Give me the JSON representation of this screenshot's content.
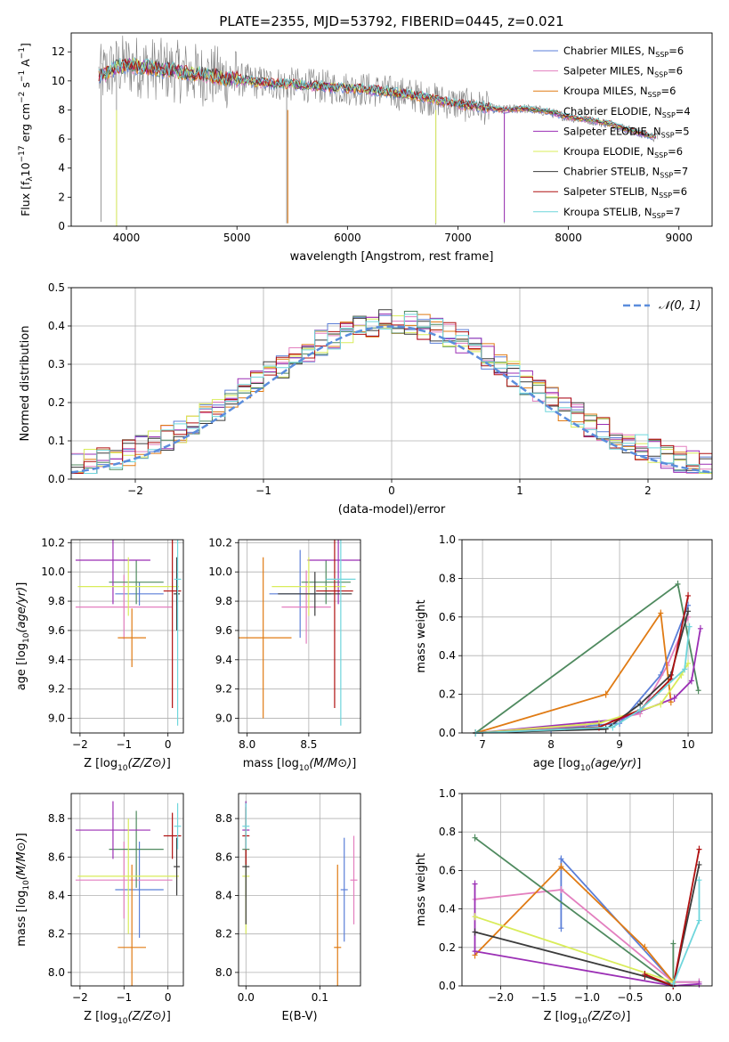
{
  "title": "PLATE=2355, MJD=53792, FIBERID=0445, z=0.021",
  "colors": {
    "Chabrier MILES": "#5b7fd8",
    "Salpeter MILES": "#e37fbf",
    "Kroupa MILES": "#e07b14",
    "Chabrier ELODIE": "#4f8a5f",
    "Salpeter ELODIE": "#9b2fb5",
    "Kroupa ELODIE": "#d9ec5a",
    "Chabrier STELIB": "#3b3b3b",
    "Salpeter STELIB": "#b01010",
    "Kroupa STELIB": "#6fd6dc",
    "data": "#7f7f7f",
    "normal": "#5b8ddc"
  },
  "chart_data": [
    {
      "type": "line",
      "panel": "spectrum",
      "xlabel": "wavelength [Angstrom, rest frame]",
      "ylabel": "Flux [fλ10⁻¹⁷ erg cm⁻² s⁻¹ A⁻¹]",
      "xlim": [
        3500,
        9300
      ],
      "ylim": [
        0,
        13.3
      ],
      "xticks": [
        "4000",
        "5000",
        "6000",
        "7000",
        "8000",
        "9000"
      ],
      "yticks": [
        "0",
        "2",
        "4",
        "6",
        "8",
        "10",
        "12"
      ],
      "legend_position": "top-right",
      "series": [
        {
          "label": "Chabrier MILES, N",
          "sub": "SSP",
          "suffix": "=6",
          "key": "Chabrier MILES"
        },
        {
          "label": "Salpeter MILES, N",
          "sub": "SSP",
          "suffix": "=6",
          "key": "Salpeter MILES"
        },
        {
          "label": "Kroupa MILES, N",
          "sub": "SSP",
          "suffix": "=6",
          "key": "Kroupa MILES"
        },
        {
          "label": "Chabrier ELODIE, N",
          "sub": "SSP",
          "suffix": "=4",
          "key": "Chabrier ELODIE"
        },
        {
          "label": "Salpeter ELODIE, N",
          "sub": "SSP",
          "suffix": "=5",
          "key": "Salpeter ELODIE"
        },
        {
          "label": "Kroupa ELODIE, N",
          "sub": "SSP",
          "suffix": "=6",
          "key": "Kroupa ELODIE"
        },
        {
          "label": "Chabrier STELIB, N",
          "sub": "SSP",
          "suffix": "=7",
          "key": "Chabrier STELIB"
        },
        {
          "label": "Salpeter STELIB, N",
          "sub": "SSP",
          "suffix": "=6",
          "key": "Salpeter STELIB"
        },
        {
          "label": "Kroupa STELIB, N",
          "sub": "SSP",
          "suffix": "=7",
          "key": "Kroupa STELIB"
        }
      ],
      "continuum": {
        "x": [
          3750,
          3900,
          4000,
          4100,
          4200,
          4400,
          4600,
          4800,
          5000,
          5200,
          5400,
          5600,
          5800,
          6000,
          6200,
          6400,
          6600,
          6800,
          7000,
          7200,
          7400,
          7600,
          7800,
          8000,
          8200,
          8400,
          8600,
          8800
        ],
        "y": [
          10.3,
          10.9,
          11.1,
          11.0,
          10.9,
          10.7,
          10.5,
          10.3,
          10.1,
          9.9,
          9.8,
          9.7,
          9.6,
          9.5,
          9.4,
          9.2,
          9.0,
          8.7,
          8.4,
          8.2,
          8.0,
          8.1,
          7.9,
          7.5,
          7.3,
          7.0,
          6.5,
          6.1
        ]
      }
    },
    {
      "type": "histogram",
      "panel": "residuals",
      "xlabel": "(data-model)/error",
      "ylabel": "Normed distribution",
      "xlim": [
        -2.5,
        2.5
      ],
      "ylim": [
        0,
        0.5
      ],
      "xticks": [
        "−2",
        "−1",
        "0",
        "1",
        "2"
      ],
      "yticks": [
        "0.0",
        "0.1",
        "0.2",
        "0.3",
        "0.4",
        "0.5"
      ],
      "legend": "N(0, 1)",
      "bin_width": 0.1
    },
    {
      "type": "scatter",
      "panel": "age-vs-Z",
      "xlabel": "Z [log10(Z/Z⊙)]",
      "ylabel": "age  [log10(age/yr)]",
      "xlim": [
        -2.2,
        0.35
      ],
      "ylim": [
        8.9,
        10.22
      ],
      "xticks": [
        "−2",
        "−1",
        "0"
      ],
      "yticks": [
        "9.0",
        "9.2",
        "9.4",
        "9.6",
        "9.8",
        "10.0",
        "10.2"
      ],
      "points": [
        {
          "key": "Chabrier MILES",
          "x": -0.65,
          "xerr": 0.55,
          "y": 9.85,
          "yerr": 0.08
        },
        {
          "key": "Salpeter MILES",
          "x": -1.0,
          "xerr": 1.1,
          "y": 9.76,
          "yerr": 0.22
        },
        {
          "key": "Kroupa MILES",
          "x": -0.82,
          "xerr": 0.32,
          "y": 9.55,
          "yerr": 0.2
        },
        {
          "key": "Chabrier ELODIE",
          "x": -0.72,
          "xerr": 0.62,
          "y": 9.93,
          "yerr": 0.15
        },
        {
          "key": "Salpeter ELODIE",
          "x": -1.25,
          "xerr": 0.85,
          "y": 10.08,
          "yerr": 0.3
        },
        {
          "key": "Kroupa ELODIE",
          "x": -0.9,
          "xerr": 1.15,
          "y": 9.9,
          "yerr": 0.2
        },
        {
          "key": "Chabrier STELIB",
          "x": 0.2,
          "xerr": 0.07,
          "y": 9.85,
          "yerr": 0.25
        },
        {
          "key": "Salpeter STELIB",
          "x": 0.1,
          "xerr": 0.2,
          "y": 9.87,
          "yerr": 0.8
        },
        {
          "key": "Kroupa STELIB",
          "x": 0.22,
          "xerr": 0.08,
          "y": 9.95,
          "yerr": 1.0
        }
      ]
    },
    {
      "type": "scatter",
      "panel": "age-vs-mass",
      "xlabel": "mass [log10(M/M⊙)]",
      "ylabel": "",
      "xlim": [
        7.93,
        8.92
      ],
      "ylim": [
        8.9,
        10.22
      ],
      "xticks": [
        "8.0",
        "8.5"
      ],
      "yticks": [
        "9.0",
        "9.2",
        "9.4",
        "9.6",
        "9.8",
        "10.0",
        "10.2"
      ],
      "points": [
        {
          "key": "Chabrier MILES",
          "x": 8.43,
          "xerr": 0.25,
          "y": 9.85,
          "yerr": 0.3
        },
        {
          "key": "Salpeter MILES",
          "x": 8.48,
          "xerr": 0.2,
          "y": 9.76,
          "yerr": 0.25
        },
        {
          "key": "Kroupa MILES",
          "x": 8.13,
          "xerr": 0.23,
          "y": 9.55,
          "yerr": 0.55
        },
        {
          "key": "Chabrier ELODIE",
          "x": 8.64,
          "xerr": 0.2,
          "y": 9.93,
          "yerr": 0.15
        },
        {
          "key": "Salpeter ELODIE",
          "x": 8.74,
          "xerr": 0.25,
          "y": 10.08,
          "yerr": 0.3
        },
        {
          "key": "Kroupa ELODIE",
          "x": 8.5,
          "xerr": 0.3,
          "y": 9.9,
          "yerr": 0.2
        },
        {
          "key": "Chabrier STELIB",
          "x": 8.55,
          "xerr": 0.3,
          "y": 9.85,
          "yerr": 0.15
        },
        {
          "key": "Salpeter STELIB",
          "x": 8.71,
          "xerr": 0.15,
          "y": 9.87,
          "yerr": 0.8
        },
        {
          "key": "Kroupa STELIB",
          "x": 8.76,
          "xerr": 0.12,
          "y": 9.95,
          "yerr": 1.0
        }
      ]
    },
    {
      "type": "line",
      "panel": "mass-weight-vs-age",
      "xlabel": "age  [log10(age/yr)]",
      "ylabel": "mass weight",
      "xlim": [
        6.7,
        10.35
      ],
      "ylim": [
        0,
        1.0
      ],
      "xticks": [
        "7",
        "8",
        "9",
        "10"
      ],
      "yticks": [
        "0.0",
        "0.2",
        "0.4",
        "0.6",
        "0.8",
        "1.0"
      ],
      "series": [
        {
          "key": "Chabrier MILES",
          "x": [
            6.9,
            8.0,
            9.0,
            9.6,
            10.0
          ],
          "y": [
            0.0,
            0.02,
            0.05,
            0.3,
            0.66
          ]
        },
        {
          "key": "Salpeter MILES",
          "x": [
            6.9,
            8.5,
            9.3,
            9.7,
            10.0
          ],
          "y": [
            0.0,
            0.04,
            0.1,
            0.35,
            0.6
          ]
        },
        {
          "key": "Kroupa MILES",
          "x": [
            6.9,
            8.8,
            9.6,
            9.75
          ],
          "y": [
            0.0,
            0.2,
            0.62,
            0.16
          ]
        },
        {
          "key": "Chabrier ELODIE",
          "x": [
            6.9,
            9.85,
            10.15
          ],
          "y": [
            0.0,
            0.77,
            0.22
          ]
        },
        {
          "key": "Salpeter ELODIE",
          "x": [
            6.9,
            9.0,
            9.8,
            10.05,
            10.18
          ],
          "y": [
            0.0,
            0.07,
            0.18,
            0.27,
            0.54
          ]
        },
        {
          "key": "Kroupa ELODIE",
          "x": [
            6.9,
            8.7,
            9.6,
            9.9,
            10.0
          ],
          "y": [
            0.0,
            0.05,
            0.15,
            0.3,
            0.36
          ]
        },
        {
          "key": "Chabrier STELIB",
          "x": [
            6.9,
            8.8,
            9.3,
            9.75,
            10.0
          ],
          "y": [
            0.0,
            0.02,
            0.15,
            0.3,
            0.63
          ]
        },
        {
          "key": "Salpeter STELIB",
          "x": [
            6.9,
            8.7,
            9.3,
            9.75,
            10.0
          ],
          "y": [
            0.0,
            0.03,
            0.12,
            0.28,
            0.71
          ]
        },
        {
          "key": "Kroupa STELIB",
          "x": [
            6.9,
            8.9,
            9.3,
            9.95,
            10.02
          ],
          "y": [
            0.0,
            0.03,
            0.12,
            0.33,
            0.55
          ]
        }
      ]
    },
    {
      "type": "scatter",
      "panel": "mass-vs-Z",
      "xlabel": "Z [log10(Z/Z⊙)]",
      "ylabel": "mass [log10(M/M⊙)]",
      "xlim": [
        -2.2,
        0.35
      ],
      "ylim": [
        7.93,
        8.93
      ],
      "xticks": [
        "−2",
        "−1",
        "0"
      ],
      "yticks": [
        "8.0",
        "8.2",
        "8.4",
        "8.6",
        "8.8"
      ],
      "points": [
        {
          "key": "Chabrier MILES",
          "x": -0.65,
          "xerr": 0.55,
          "y": 8.43,
          "yerr": 0.25
        },
        {
          "key": "Salpeter MILES",
          "x": -1.0,
          "xerr": 1.1,
          "y": 8.48,
          "yerr": 0.2
        },
        {
          "key": "Kroupa MILES",
          "x": -0.82,
          "xerr": 0.32,
          "y": 8.13,
          "yerr": 0.43
        },
        {
          "key": "Chabrier ELODIE",
          "x": -0.72,
          "xerr": 0.62,
          "y": 8.64,
          "yerr": 0.2
        },
        {
          "key": "Salpeter ELODIE",
          "x": -1.25,
          "xerr": 0.85,
          "y": 8.74,
          "yerr": 0.15
        },
        {
          "key": "Kroupa ELODIE",
          "x": -0.9,
          "xerr": 1.15,
          "y": 8.5,
          "yerr": 0.3
        },
        {
          "key": "Chabrier STELIB",
          "x": 0.2,
          "xerr": 0.07,
          "y": 8.55,
          "yerr": 0.15
        },
        {
          "key": "Salpeter STELIB",
          "x": 0.1,
          "xerr": 0.2,
          "y": 8.71,
          "yerr": 0.12
        },
        {
          "key": "Kroupa STELIB",
          "x": 0.22,
          "xerr": 0.08,
          "y": 8.76,
          "yerr": 0.12
        }
      ]
    },
    {
      "type": "scatter",
      "panel": "mass-vs-EBV",
      "xlabel": "E(B-V)",
      "ylabel": "",
      "xlim": [
        -0.01,
        0.155
      ],
      "ylim": [
        7.93,
        8.93
      ],
      "xticks": [
        "0.0",
        "0.1"
      ],
      "yticks": [
        "8.0",
        "8.2",
        "8.4",
        "8.6",
        "8.8"
      ],
      "points": [
        {
          "key": "Chabrier MILES",
          "x": 0.133,
          "y": 8.43,
          "yerr": 0.27
        },
        {
          "key": "Salpeter MILES",
          "x": 0.146,
          "y": 8.48,
          "yerr": 0.23
        },
        {
          "key": "Kroupa MILES",
          "x": 0.124,
          "y": 8.13,
          "yerr": 0.43
        },
        {
          "key": "Chabrier ELODIE",
          "x": 0.0,
          "y": 8.64,
          "yerr": 0.25
        },
        {
          "key": "Salpeter ELODIE",
          "x": 0.0,
          "y": 8.74,
          "yerr": 0.15
        },
        {
          "key": "Kroupa ELODIE",
          "x": 0.0,
          "y": 8.5,
          "yerr": 0.3
        },
        {
          "key": "Chabrier STELIB",
          "x": 0.0,
          "y": 8.55,
          "yerr": 0.3
        },
        {
          "key": "Salpeter STELIB",
          "x": 0.0,
          "y": 8.71,
          "yerr": 0.15
        },
        {
          "key": "Kroupa STELIB",
          "x": 0.0,
          "y": 8.76,
          "yerr": 0.12
        }
      ]
    },
    {
      "type": "line",
      "panel": "mass-weight-vs-Z",
      "xlabel": "Z [log10(Z/Z⊙)]",
      "ylabel": "mass weight",
      "xlim": [
        -2.45,
        0.45
      ],
      "ylim": [
        0,
        1.0
      ],
      "xticks": [
        "−2.0",
        "−1.5",
        "−1.0",
        "−0.5",
        "0.0"
      ],
      "yticks": [
        "0.0",
        "0.2",
        "0.4",
        "0.6",
        "0.8",
        "1.0"
      ],
      "series": [
        {
          "key": "Chabrier MILES",
          "x": [
            -1.3,
            -1.3,
            0.0,
            0.3
          ],
          "y": [
            0.3,
            0.66,
            0.02,
            0.02
          ]
        },
        {
          "key": "Salpeter MILES",
          "x": [
            -2.3,
            -1.3,
            0.0,
            0.3
          ],
          "y": [
            0.45,
            0.5,
            0.02,
            0.02
          ]
        },
        {
          "key": "Kroupa MILES",
          "x": [
            -2.3,
            -1.3,
            -0.33,
            0.0
          ],
          "y": [
            0.16,
            0.62,
            0.2,
            0.02
          ]
        },
        {
          "key": "Chabrier ELODIE",
          "x": [
            -2.3,
            0.0,
            0.0
          ],
          "y": [
            0.77,
            0.0,
            0.22
          ]
        },
        {
          "key": "Salpeter ELODIE",
          "x": [
            -2.3,
            -2.3,
            0.0,
            0.3
          ],
          "y": [
            0.53,
            0.18,
            0.0,
            0.01
          ]
        },
        {
          "key": "Kroupa ELODIE",
          "x": [
            -2.3,
            0.0
          ],
          "y": [
            0.36,
            0.02
          ]
        },
        {
          "key": "Chabrier STELIB",
          "x": [
            -2.3,
            -0.33,
            0.0,
            0.3
          ],
          "y": [
            0.28,
            0.05,
            0.0,
            0.63
          ]
        },
        {
          "key": "Salpeter STELIB",
          "x": [
            -0.33,
            0.0,
            0.3
          ],
          "y": [
            0.06,
            0.0,
            0.71
          ]
        },
        {
          "key": "Kroupa STELIB",
          "x": [
            0.0,
            0.3,
            0.3
          ],
          "y": [
            0.01,
            0.34,
            0.55
          ]
        }
      ]
    }
  ]
}
